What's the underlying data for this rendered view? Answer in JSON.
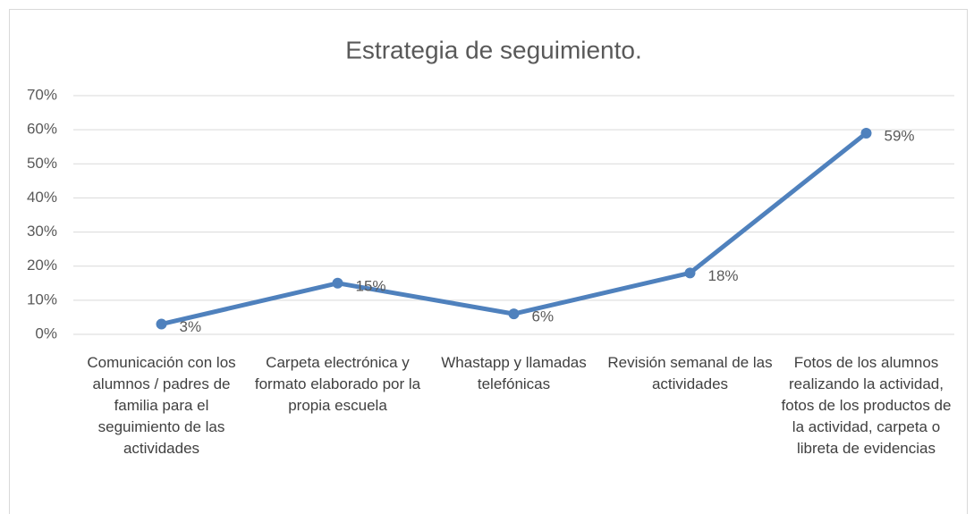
{
  "chart_data": {
    "type": "line",
    "title": "Estrategia de seguimiento.",
    "categories": [
      "Comunicación con los alumnos / padres de familia para el seguimiento de las actividades",
      "Carpeta electrónica y formato elaborado por la propia escuela",
      "Whastapp y llamadas telefónicas",
      "Revisión semanal de las actividades",
      "Fotos de los alumnos realizando la actividad, fotos de los productos de la actividad, carpeta o libreta de evidencias"
    ],
    "values": [
      3,
      15,
      6,
      18,
      59
    ],
    "value_labels": [
      "3%",
      "15%",
      "6%",
      "18%",
      "59%"
    ],
    "color": "#4f81bd",
    "ylim": [
      0,
      70
    ],
    "yticks": [
      {
        "value": 0,
        "label": "0%"
      },
      {
        "value": 10,
        "label": "10%"
      },
      {
        "value": 20,
        "label": "20%"
      },
      {
        "value": 30,
        "label": "30%"
      },
      {
        "value": 40,
        "label": "40%"
      },
      {
        "value": 50,
        "label": "50%"
      },
      {
        "value": 60,
        "label": "60%"
      },
      {
        "value": 70,
        "label": "70%"
      }
    ],
    "grid": true
  }
}
